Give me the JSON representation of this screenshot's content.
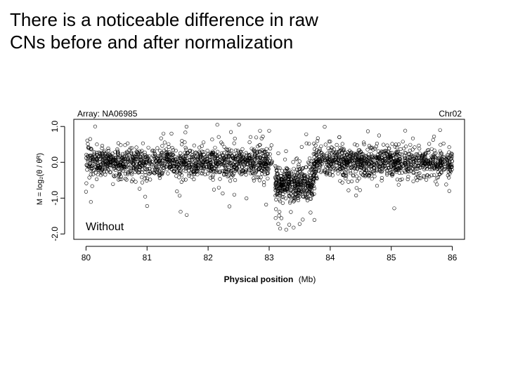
{
  "slide": {
    "title_line1": "There is a noticeable difference in raw",
    "title_line2": "CNs before and after normalization"
  },
  "chart_data": {
    "type": "scatter",
    "title_left": "Array: NA06985",
    "title_right": "Chr02",
    "inset_label": "Without",
    "xlabel_main": "Physical position",
    "xlabel_unit": "(Mb)",
    "ylabel": "M = log₂(θ / θᴿ)",
    "xlim": [
      79.8,
      86.2
    ],
    "ylim": [
      -2.15,
      1.2
    ],
    "xticks": [
      80,
      81,
      82,
      83,
      84,
      85,
      86
    ],
    "yticks": [
      -2.0,
      -1.0,
      0.0,
      1.0
    ],
    "ytick_labels": [
      "-2.0",
      "-1.0",
      "0.0",
      "1.0"
    ],
    "segments": [
      {
        "name": "normal-left",
        "x_range": [
          80.0,
          83.05
        ],
        "center": 0.0,
        "spread": 0.2,
        "n": 1300
      },
      {
        "name": "deletion",
        "x_range": [
          83.1,
          83.75
        ],
        "center": -0.6,
        "spread": 0.25,
        "n": 420
      },
      {
        "name": "normal-right",
        "x_range": [
          83.72,
          86.0
        ],
        "center": 0.0,
        "spread": 0.2,
        "n": 1000
      }
    ],
    "outliers": [
      {
        "x": 80.15,
        "y": 1.0
      },
      {
        "x": 81.4,
        "y": 0.8
      },
      {
        "x": 82.15,
        "y": 1.05
      },
      {
        "x": 82.85,
        "y": 0.88
      },
      {
        "x": 83.0,
        "y": 0.88
      },
      {
        "x": 84.15,
        "y": 0.7
      },
      {
        "x": 84.8,
        "y": 0.75
      },
      {
        "x": 85.7,
        "y": 0.72
      },
      {
        "x": 85.8,
        "y": 0.9
      },
      {
        "x": 80.0,
        "y": -0.82
      },
      {
        "x": 81.0,
        "y": -1.22
      },
      {
        "x": 81.55,
        "y": -1.38
      },
      {
        "x": 81.65,
        "y": -1.47
      },
      {
        "x": 82.35,
        "y": -1.23
      },
      {
        "x": 82.95,
        "y": -1.18
      },
      {
        "x": 83.15,
        "y": -1.72
      },
      {
        "x": 83.18,
        "y": -1.85
      },
      {
        "x": 83.28,
        "y": -1.88
      },
      {
        "x": 83.4,
        "y": -1.82
      },
      {
        "x": 83.5,
        "y": -1.72
      },
      {
        "x": 83.55,
        "y": -1.6
      },
      {
        "x": 85.95,
        "y": -0.8
      },
      {
        "x": 85.9,
        "y": -0.62
      },
      {
        "x": 84.3,
        "y": -0.78
      }
    ]
  }
}
